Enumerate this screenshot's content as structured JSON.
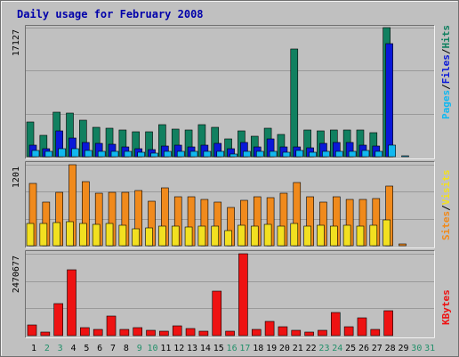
{
  "title": "Daily usage for February 2008",
  "colors": {
    "background": "#c0c0c0",
    "frame_light": "#f2f2f2",
    "frame_dark": "#707070",
    "title": "#0000aa",
    "hits": "#118060",
    "files": "#0a18d8",
    "pages": "#11b8f0",
    "visits": "#f2e020",
    "sites": "#f08a1c",
    "kbytes": "#ee1212",
    "weekday_label": "#000000",
    "weekend_label": "#22906a"
  },
  "chart_data": [
    {
      "type": "bar",
      "panel": "hits-files-pages",
      "categories": [
        "1",
        "2",
        "3",
        "4",
        "5",
        "6",
        "7",
        "8",
        "9",
        "10",
        "11",
        "12",
        "13",
        "14",
        "15",
        "16",
        "17",
        "18",
        "19",
        "20",
        "21",
        "22",
        "23",
        "24",
        "25",
        "26",
        "27",
        "28",
        "29",
        "30",
        "31"
      ],
      "weekend_days": [
        2,
        3,
        9,
        10,
        16,
        17,
        23,
        24,
        30,
        31
      ],
      "max_label": "17127",
      "ylim": [
        0,
        17127
      ],
      "series": [
        {
          "name": "Hits",
          "color_key": "hits",
          "values": [
            4650,
            2850,
            5850,
            5750,
            4800,
            3900,
            3800,
            3500,
            3300,
            3300,
            4300,
            3700,
            3500,
            4200,
            3900,
            2400,
            3400,
            2700,
            3750,
            2900,
            14300,
            3500,
            3400,
            3600,
            3600,
            3550,
            3200,
            17127,
            0,
            0,
            0
          ]
        },
        {
          "name": "Files",
          "color_key": "files",
          "values": [
            1500,
            1050,
            3400,
            2450,
            1900,
            1800,
            1650,
            1300,
            1100,
            1000,
            1400,
            1500,
            1250,
            1500,
            1800,
            1050,
            1900,
            1300,
            2350,
            1300,
            1350,
            1200,
            1800,
            1900,
            1900,
            1550,
            1400,
            15000,
            0,
            0,
            0
          ]
        },
        {
          "name": "Pages",
          "color_key": "pages",
          "values": [
            800,
            700,
            1050,
            1050,
            800,
            750,
            750,
            650,
            600,
            500,
            700,
            700,
            650,
            700,
            750,
            400,
            750,
            700,
            650,
            550,
            850,
            600,
            750,
            750,
            750,
            800,
            650,
            1550,
            120,
            0,
            0
          ]
        }
      ],
      "legend": [
        "Pages",
        "/",
        "Files",
        "/",
        "Hits"
      ]
    },
    {
      "type": "bar",
      "panel": "sites-visits",
      "categories": [
        "1",
        "2",
        "3",
        "4",
        "5",
        "6",
        "7",
        "8",
        "9",
        "10",
        "11",
        "12",
        "13",
        "14",
        "15",
        "16",
        "17",
        "18",
        "19",
        "20",
        "21",
        "22",
        "23",
        "24",
        "25",
        "26",
        "27",
        "28",
        "29",
        "30",
        "31"
      ],
      "max_label": "1201",
      "ylim": [
        0,
        1201
      ],
      "series": [
        {
          "name": "Visits",
          "color_key": "visits",
          "values": [
            330,
            330,
            340,
            350,
            325,
            320,
            330,
            310,
            245,
            260,
            290,
            290,
            280,
            290,
            290,
            230,
            300,
            290,
            320,
            290,
            330,
            290,
            300,
            290,
            310,
            290,
            310,
            380,
            0,
            0,
            0
          ]
        },
        {
          "name": "Sites",
          "color_key": "sites",
          "values": [
            920,
            650,
            790,
            1201,
            950,
            780,
            790,
            790,
            820,
            660,
            860,
            720,
            720,
            680,
            650,
            570,
            670,
            730,
            710,
            780,
            940,
            730,
            650,
            730,
            690,
            680,
            700,
            890,
            20,
            0,
            0
          ]
        }
      ],
      "legend": [
        "Sites",
        "/",
        "Visits"
      ]
    },
    {
      "type": "bar",
      "panel": "kbytes",
      "categories": [
        "1",
        "2",
        "3",
        "4",
        "5",
        "6",
        "7",
        "8",
        "9",
        "10",
        "11",
        "12",
        "13",
        "14",
        "15",
        "16",
        "17",
        "18",
        "19",
        "20",
        "21",
        "22",
        "23",
        "24",
        "25",
        "26",
        "27",
        "28",
        "29",
        "30",
        "31"
      ],
      "max_label": "2470677",
      "ylim": [
        0,
        2470677
      ],
      "series": [
        {
          "name": "KBytes",
          "color_key": "kbytes",
          "values": [
            310000,
            100000,
            970000,
            1990000,
            230000,
            200000,
            580000,
            190000,
            230000,
            150000,
            140000,
            300000,
            210000,
            140000,
            1340000,
            140000,
            2470677,
            180000,
            430000,
            270000,
            150000,
            120000,
            170000,
            700000,
            260000,
            540000,
            190000,
            760000,
            0,
            0,
            0
          ]
        }
      ],
      "legend": [
        "KBytes"
      ]
    }
  ]
}
